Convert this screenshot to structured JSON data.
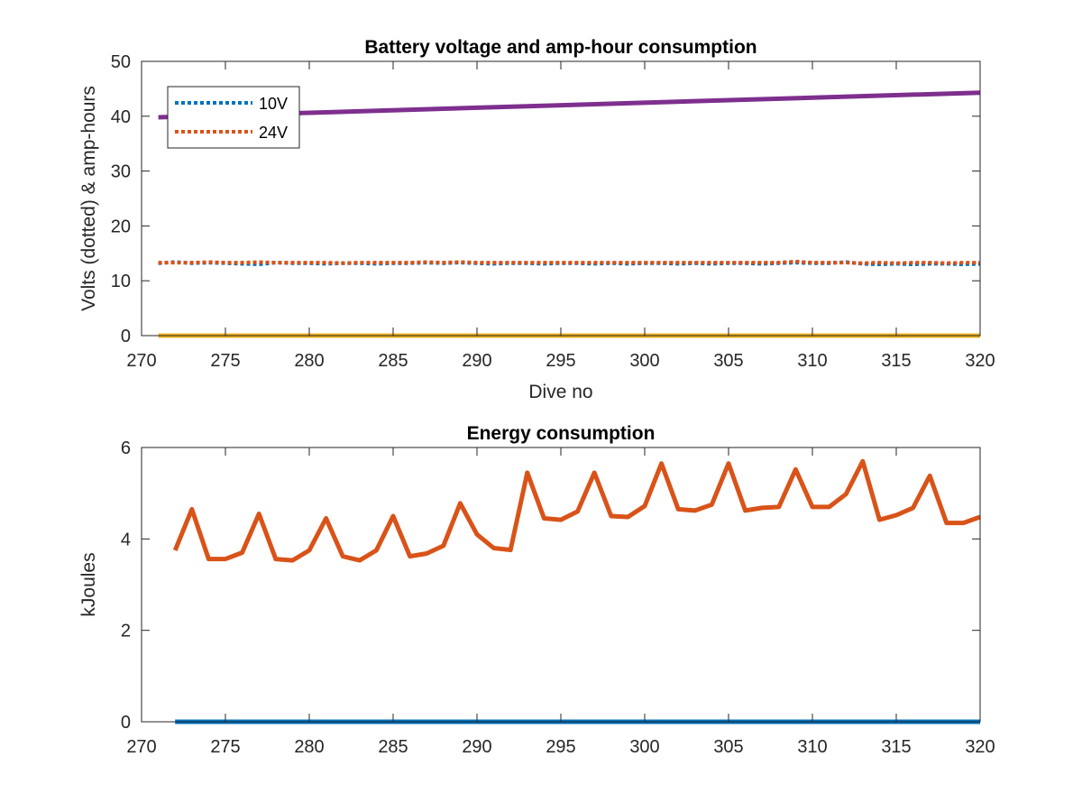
{
  "chart_data": [
    {
      "type": "line",
      "title": "Battery voltage and amp-hour consumption",
      "xlabel": "Dive no",
      "ylabel": "Volts (dotted) & amp-hours",
      "xlim": [
        270,
        320
      ],
      "ylim": [
        0,
        50
      ],
      "xticks": [
        270,
        275,
        280,
        285,
        290,
        295,
        300,
        305,
        310,
        315,
        320
      ],
      "yticks": [
        0,
        10,
        20,
        30,
        40,
        50
      ],
      "grid": false,
      "legend_position": "top-left",
      "series": [
        {
          "name": "10V",
          "color": "#0072BD",
          "style": "dotted",
          "x": [
            271,
            272,
            273,
            274,
            275,
            276,
            277,
            278,
            279,
            280,
            281,
            282,
            283,
            284,
            285,
            286,
            287,
            288,
            289,
            290,
            291,
            292,
            293,
            294,
            295,
            296,
            297,
            298,
            299,
            300,
            301,
            302,
            303,
            304,
            305,
            306,
            307,
            308,
            309,
            310,
            311,
            312,
            313,
            314,
            315,
            316,
            317,
            318,
            319,
            320
          ],
          "values": [
            13.2,
            13.4,
            13.2,
            13.3,
            13.2,
            13.1,
            13.0,
            13.3,
            13.2,
            13.2,
            13.1,
            13.2,
            13.2,
            13.1,
            13.2,
            13.2,
            13.3,
            13.2,
            13.3,
            13.2,
            13.1,
            13.2,
            13.2,
            13.1,
            13.2,
            13.2,
            13.1,
            13.2,
            13.1,
            13.2,
            13.2,
            13.1,
            13.2,
            13.1,
            13.2,
            13.2,
            13.1,
            13.2,
            13.3,
            13.2,
            13.2,
            13.4,
            13.1,
            13.0,
            13.1,
            13.0,
            13.1,
            13.1,
            13.0,
            13.1
          ]
        },
        {
          "name": "24V",
          "color": "#D95319",
          "style": "dotted",
          "x": [
            271,
            272,
            273,
            274,
            275,
            276,
            277,
            278,
            279,
            280,
            281,
            282,
            283,
            284,
            285,
            286,
            287,
            288,
            289,
            290,
            291,
            292,
            293,
            294,
            295,
            296,
            297,
            298,
            299,
            300,
            301,
            302,
            303,
            304,
            305,
            306,
            307,
            308,
            309,
            310,
            311,
            312,
            313,
            314,
            315,
            316,
            317,
            318,
            319,
            320
          ],
          "values": [
            13.3,
            13.3,
            13.3,
            13.4,
            13.3,
            13.3,
            13.4,
            13.3,
            13.3,
            13.3,
            13.3,
            13.2,
            13.3,
            13.3,
            13.3,
            13.3,
            13.4,
            13.3,
            13.4,
            13.3,
            13.3,
            13.3,
            13.3,
            13.3,
            13.3,
            13.3,
            13.3,
            13.3,
            13.3,
            13.3,
            13.3,
            13.3,
            13.3,
            13.3,
            13.3,
            13.3,
            13.3,
            13.3,
            13.5,
            13.3,
            13.3,
            13.3,
            13.2,
            13.3,
            13.2,
            13.3,
            13.3,
            13.2,
            13.3,
            13.3
          ]
        },
        {
          "color": "#EDB120",
          "style": "solid",
          "x": [
            271,
            320
          ],
          "values": [
            0,
            0
          ]
        },
        {
          "color": "#7E2F8E",
          "style": "solid",
          "x": [
            271,
            320
          ],
          "values": [
            39.8,
            44.3
          ]
        }
      ]
    },
    {
      "type": "line",
      "title": "Energy consumption",
      "xlabel": "",
      "ylabel": "kJoules",
      "xlim": [
        270,
        320
      ],
      "ylim": [
        0,
        6
      ],
      "xticks": [
        270,
        275,
        280,
        285,
        290,
        295,
        300,
        305,
        310,
        315,
        320
      ],
      "yticks": [
        0,
        2,
        4,
        6
      ],
      "grid": false,
      "series": [
        {
          "color": "#D95319",
          "style": "solid",
          "x": [
            272,
            273,
            274,
            275,
            276,
            277,
            278,
            279,
            280,
            281,
            282,
            283,
            284,
            285,
            286,
            287,
            288,
            289,
            290,
            291,
            292,
            293,
            294,
            295,
            296,
            297,
            298,
            299,
            300,
            301,
            302,
            303,
            304,
            305,
            306,
            307,
            308,
            309,
            310,
            311,
            312,
            313,
            314,
            315,
            316,
            317,
            318,
            319,
            320
          ],
          "values": [
            3.75,
            4.65,
            3.56,
            3.56,
            3.7,
            4.55,
            3.56,
            3.53,
            3.75,
            4.45,
            3.62,
            3.53,
            3.75,
            4.5,
            3.62,
            3.68,
            3.85,
            4.78,
            4.1,
            3.8,
            3.76,
            5.45,
            4.45,
            4.42,
            4.6,
            5.45,
            4.5,
            4.48,
            4.72,
            5.65,
            4.65,
            4.62,
            4.75,
            5.65,
            4.62,
            4.68,
            4.7,
            5.52,
            4.7,
            4.7,
            4.98,
            5.7,
            4.42,
            4.52,
            4.68,
            5.38,
            4.35,
            4.35,
            4.48
          ]
        },
        {
          "color": "#0072BD",
          "style": "solid",
          "x": [
            272,
            320
          ],
          "values": [
            0,
            0
          ]
        }
      ]
    }
  ]
}
